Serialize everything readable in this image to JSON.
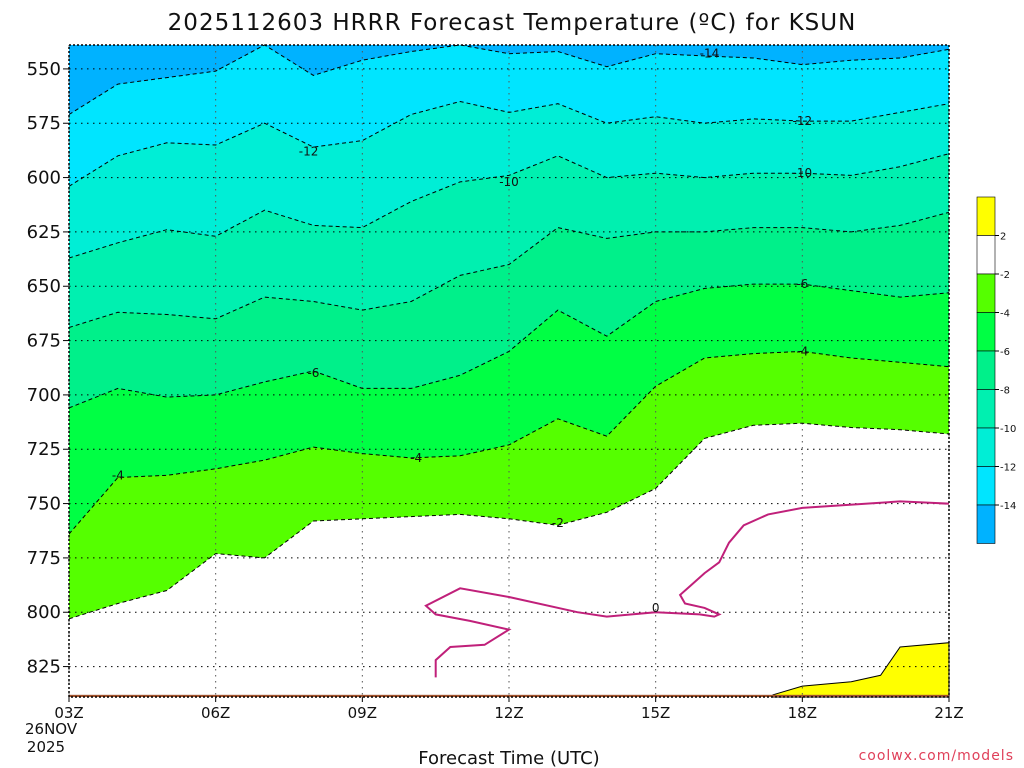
{
  "chart_data": {
    "type": "heatmap",
    "title": "2025112603 HRRR Forecast Temperature (ºC) for KSUN",
    "xlabel": "Forecast Time (UTC)",
    "ylabel": "",
    "x_ticks": [
      "03Z",
      "06Z",
      "09Z",
      "12Z",
      "15Z",
      "18Z",
      "21Z"
    ],
    "x_date": [
      "26NOV",
      "2025"
    ],
    "y_ticks": [
      550,
      575,
      600,
      625,
      650,
      675,
      700,
      725,
      750,
      775,
      800,
      825
    ],
    "y_range_hPa": [
      839,
      539
    ],
    "x_hours": [
      3,
      4,
      5,
      6,
      7,
      8,
      9,
      10,
      11,
      12,
      13,
      14,
      15,
      16,
      17,
      18,
      19,
      20,
      21
    ],
    "contour_levels": [
      -14,
      -12,
      -10,
      -8,
      -6,
      -4,
      -2,
      0,
      2
    ],
    "contour_labels": [
      "-14",
      "-12",
      "-10",
      "-6",
      "-4",
      "-2",
      "0"
    ],
    "colorbar_labels": [
      "2",
      "-2",
      "-4",
      "-6",
      "-8",
      "-10",
      "-12",
      "-14"
    ],
    "colors": {
      "band_ge_2": "#ffff00",
      "band_-2_2": "#ffffff",
      "band_-4_-2": "#55ff00",
      "band_-6_-4": "#00ff44",
      "band_-8_-6": "#00f08a",
      "band_-10_-8": "#00f0b0",
      "band_-12_-10": "#00eed6",
      "band_-14_-12": "#00e5ff",
      "band_lt_-14": "#00b2ff",
      "terrain": "#a0522d",
      "zero_line": "#c0207a"
    },
    "isotherms_hPa": {
      "-14": [
        571,
        557,
        554,
        551,
        539,
        553,
        546,
        542,
        539,
        543,
        542,
        549,
        543,
        544,
        545,
        548,
        546,
        545,
        541
      ],
      "-12": [
        604,
        590,
        584,
        585,
        575,
        586,
        583,
        571,
        565,
        570,
        566,
        575,
        572,
        575,
        573,
        574,
        574,
        570,
        566
      ],
      "-10": [
        637,
        630,
        624,
        627,
        615,
        622,
        623,
        611,
        602,
        599,
        590,
        600,
        598,
        600,
        598,
        598,
        599,
        595,
        589
      ],
      "-8": [
        669,
        662,
        663,
        665,
        655,
        657,
        661,
        657,
        645,
        640,
        623,
        628,
        625,
        625,
        623,
        623,
        625,
        622,
        616
      ],
      "-6": [
        706,
        697,
        701,
        700,
        694,
        689,
        697,
        697,
        691,
        680,
        661,
        673,
        657,
        651,
        649,
        649,
        652,
        655,
        653
      ],
      "-4": [
        764,
        738,
        737,
        734,
        730,
        724,
        727,
        729,
        728,
        723,
        711,
        719,
        696,
        683,
        681,
        680,
        683,
        685,
        687
      ],
      "-2": [
        803,
        796,
        790,
        773,
        775,
        758,
        757,
        756,
        755,
        757,
        760,
        754,
        743,
        720,
        714,
        713,
        715,
        716,
        718
      ]
    },
    "terrain_hPa": 838
  },
  "credit": "coolwx.com/models"
}
